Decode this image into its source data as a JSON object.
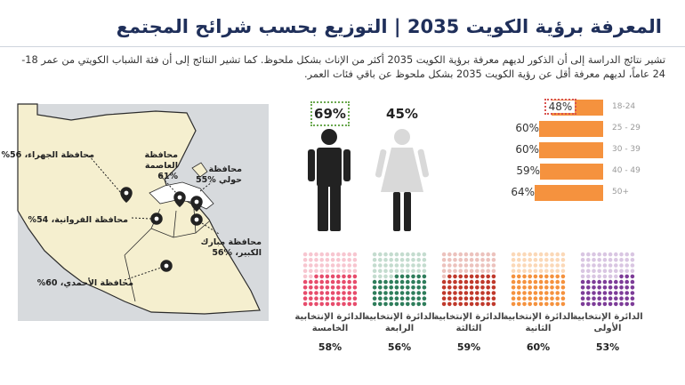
{
  "title": "المعرفة برؤية الكويت 2035 | التوزيع بحسب شرائح المجتمع",
  "subtitle": "تشير نتائج الدراسة إلى أن الذكور لديهم معرفة برؤية الكويت 2035 أكثر من الإناث بشكل ملحوظ. كما تشير النتائج إلى أن فئة الشباب الكويتي من عمر 18-24 عاماً، لديهم معرفة أقل عن رؤية الكويت 2035 بشكل ملحوظ عن باقي فئات العمر.",
  "colors": {
    "title": "#1f2f5a",
    "bar": "#f5923e",
    "male": "#222222",
    "female": "#d9d9d9",
    "map_land": "#f5efcf",
    "map_bg": "#d7dadd",
    "water": "#ffffff",
    "highlight_green": "#6aa84f",
    "highlight_red": "#d9534f"
  },
  "map": {
    "governorates": [
      {
        "name": "محافظة الجهراء، 56%"
      },
      {
        "name": "محافظة العاصمة %61"
      },
      {
        "name": "محافظة حولي %55"
      },
      {
        "name": "محافظة الفروانية، 54%"
      },
      {
        "name": "محافظة مبارك الكبير، %56"
      },
      {
        "name": "محافظة الأحمدي، 60%"
      }
    ]
  },
  "chart_data": [
    {
      "type": "bar",
      "title": "",
      "categories": [
        "ذكور",
        "إناث"
      ],
      "icons": [
        "male-icon",
        "female-icon"
      ],
      "values": [
        69,
        45
      ],
      "labels": [
        "69%",
        "45%"
      ],
      "highlight": "ذكور"
    },
    {
      "type": "bar",
      "orientation": "horizontal",
      "categories": [
        "18-24",
        "25 - 29",
        "30 - 39",
        "40 - 49",
        "50+"
      ],
      "values": [
        48,
        60,
        60,
        59,
        64
      ],
      "labels": [
        "48%",
        "60%",
        "60%",
        "59%",
        "64%"
      ],
      "highlight": "18-24",
      "xlim": [
        0,
        100
      ]
    },
    {
      "type": "bar",
      "style": "dot-matrix",
      "categories": [
        "الدائرة الإنتخابية الأولى",
        "الدائرة الإنتخابية الثانية",
        "الدائرة الإنتخابية الثالثة",
        "الدائرة الإنتخابية الرابعة",
        "الدائرة الإنتخابية الخامسة"
      ],
      "values": [
        53,
        60,
        59,
        56,
        58
      ],
      "labels": [
        "53%",
        "60%",
        "59%",
        "56%",
        "58%"
      ],
      "colors": [
        "#7d3c98",
        "#f5923e",
        "#c0392b",
        "#2e7d5b",
        "#e74c6c"
      ],
      "faded_colors": [
        "#d9c6e2",
        "#fbd8b7",
        "#ecc2bd",
        "#c4dccf",
        "#f7c6d0"
      ]
    }
  ]
}
